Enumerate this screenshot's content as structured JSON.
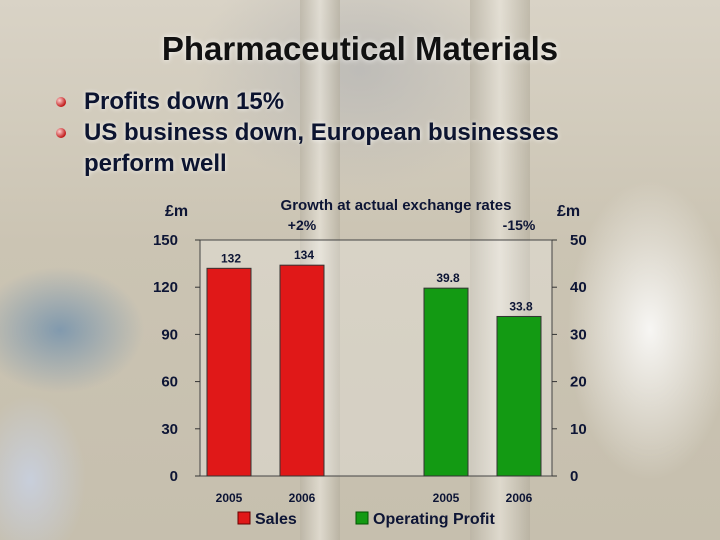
{
  "slide": {
    "title": "Pharmaceutical Materials",
    "bullets": [
      "Profits down 15%",
      "US business down, European businesses perform well"
    ]
  },
  "chart_data": {
    "type": "bar",
    "subtitle": "Growth at actual exchange rates",
    "left_axis": {
      "unit": "£m",
      "min": 0,
      "max": 150,
      "ticks": [
        0,
        30,
        60,
        90,
        120,
        150
      ]
    },
    "right_axis": {
      "unit": "£m",
      "min": 0,
      "max": 50,
      "ticks": [
        0,
        10,
        20,
        30,
        40,
        50
      ]
    },
    "series": [
      {
        "name": "Sales",
        "axis": "left",
        "color": "#e01818",
        "categories": [
          "2005",
          "2006"
        ],
        "values": [
          132,
          134
        ],
        "labels": [
          "132",
          "134"
        ],
        "growth": "+2%"
      },
      {
        "name": "Operating Profit",
        "axis": "right",
        "color": "#139a13",
        "categories": [
          "2005",
          "2006"
        ],
        "values": [
          39.8,
          33.8
        ],
        "labels": [
          "39.8",
          "33.8"
        ],
        "growth": "-15%"
      }
    ],
    "legend": "bottom"
  }
}
